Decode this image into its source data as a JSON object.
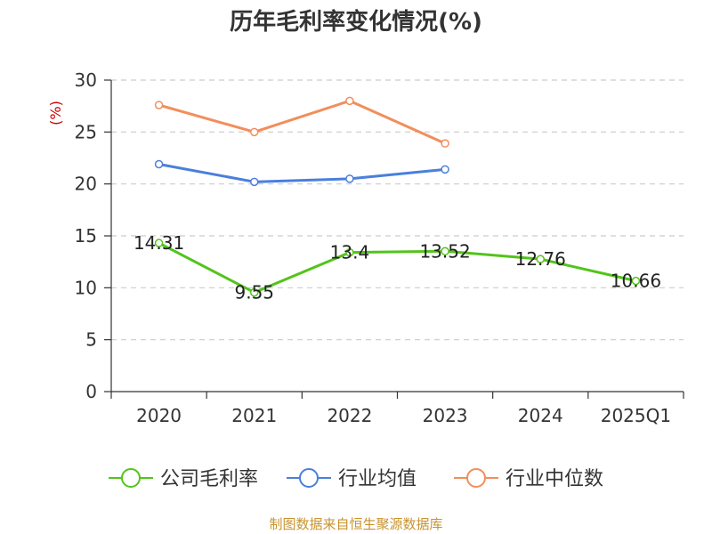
{
  "chart_data": {
    "type": "line",
    "title": "历年毛利率变化情况(%)",
    "ylabel": "(%)",
    "categories": [
      "2020",
      "2021",
      "2022",
      "2023",
      "2024",
      "2025Q1"
    ],
    "ylim": [
      0,
      30
    ],
    "yticks": [
      0,
      5,
      10,
      15,
      20,
      25,
      30
    ],
    "grid": "horizontal dashed",
    "legend_position": "bottom",
    "series": [
      {
        "name": "公司毛利率",
        "color": "#52c41a",
        "values": [
          14.31,
          9.55,
          13.4,
          13.52,
          12.76,
          10.66
        ],
        "labels": [
          "14.31",
          "9.55",
          "13.4",
          "13.52",
          "12.76",
          "10.66"
        ]
      },
      {
        "name": "行业均值",
        "color": "#4a7fdc",
        "values": [
          21.9,
          20.2,
          20.5,
          21.4,
          null,
          null
        ]
      },
      {
        "name": "行业中位数",
        "color": "#f28e5b",
        "values": [
          27.6,
          25.0,
          28.0,
          23.9,
          null,
          null
        ]
      }
    ]
  },
  "footer": "制图数据来自恒生聚源数据库"
}
